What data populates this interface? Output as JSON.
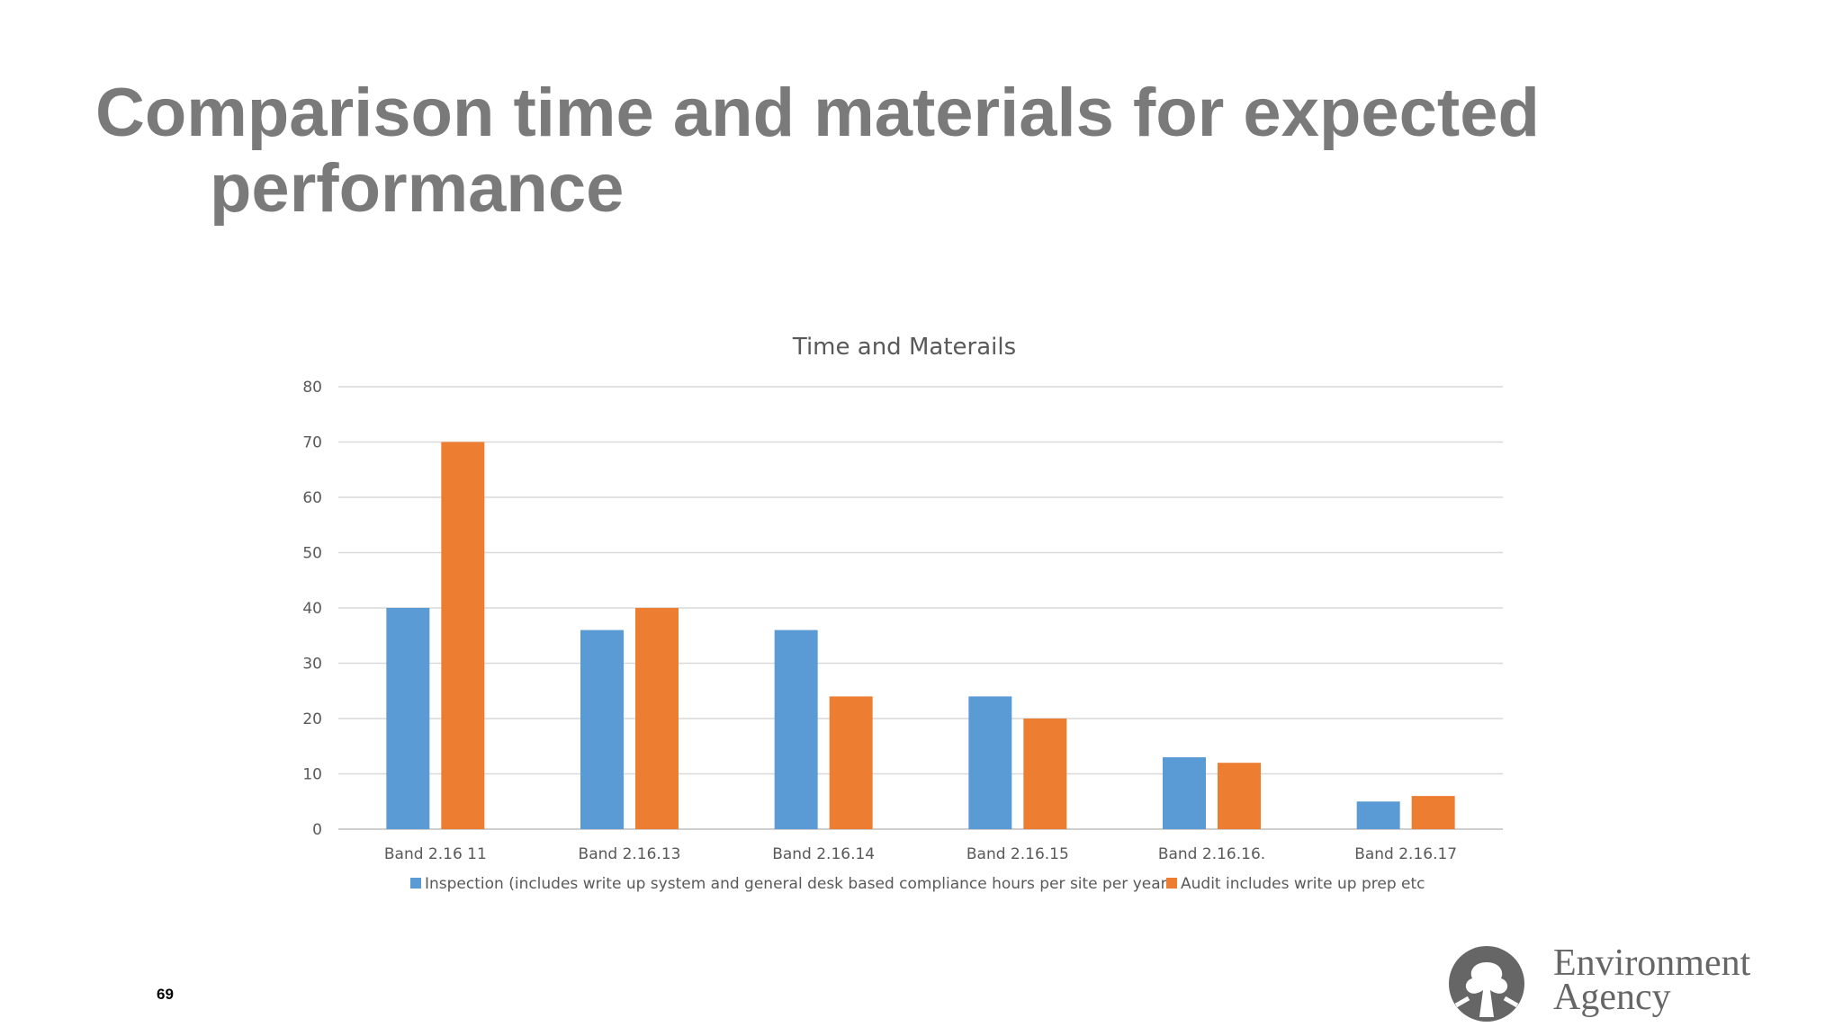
{
  "slide": {
    "title_line1": "Comparison time and materials for expected",
    "title_line2": "performance",
    "page_number": "69",
    "logo": {
      "line1": "Environment",
      "line2": "Agency",
      "icon": "tree-person-logo-icon"
    }
  },
  "chart_data": {
    "type": "bar",
    "title": "Time and Materails",
    "categories": [
      "Band 2.16 11",
      "Band 2.16.13",
      "Band 2.16.14",
      "Band 2.16.15",
      "Band 2.16.16.",
      "Band 2.16.17"
    ],
    "series": [
      {
        "name": "Inspection (includes write up system and general desk based compliance hours per site per year.",
        "color": "#5b9bd5",
        "values": [
          40,
          36,
          36,
          24,
          13,
          5
        ]
      },
      {
        "name": "Audit includes write up prep etc",
        "color": "#ed7d31",
        "values": [
          70,
          40,
          24,
          20,
          12,
          6
        ]
      }
    ],
    "ylim": [
      0,
      80
    ],
    "yticks": [
      0,
      10,
      20,
      30,
      40,
      50,
      60,
      70,
      80
    ],
    "grid": true,
    "legend": "bottom"
  }
}
